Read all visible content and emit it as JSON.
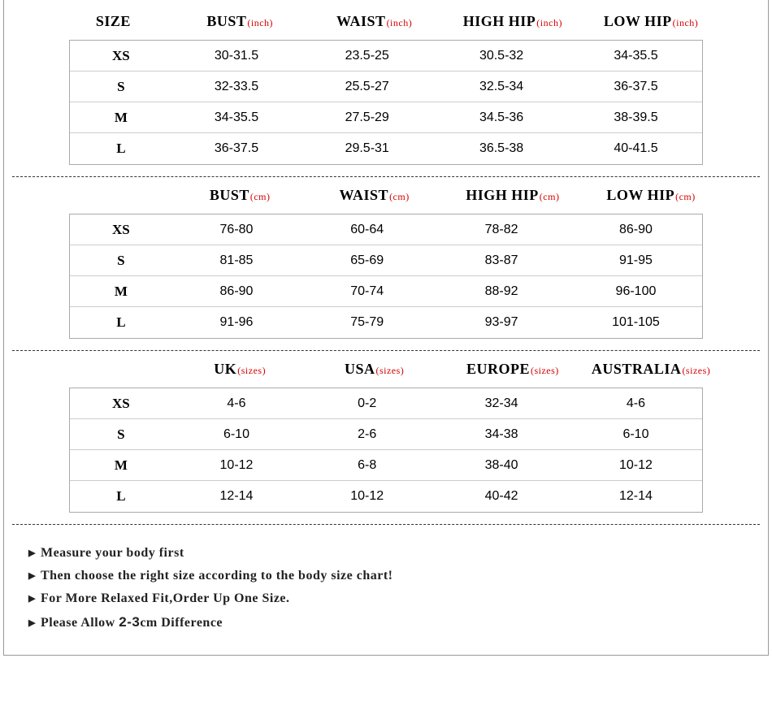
{
  "tables": [
    {
      "showSizeHeader": true,
      "sizeHeader": "SIZE",
      "headers": [
        {
          "label": "BUST",
          "unit": "(inch)"
        },
        {
          "label": "WAIST",
          "unit": "(inch)"
        },
        {
          "label": "HIGH HIP",
          "unit": "(inch)"
        },
        {
          "label": "LOW HIP",
          "unit": "(inch)"
        }
      ],
      "rows": [
        {
          "size": "XS",
          "v": [
            "30-31.5",
            "23.5-25",
            "30.5-32",
            "34-35.5"
          ]
        },
        {
          "size": "S",
          "v": [
            "32-33.5",
            "25.5-27",
            "32.5-34",
            "36-37.5"
          ]
        },
        {
          "size": "M",
          "v": [
            "34-35.5",
            "27.5-29",
            "34.5-36",
            "38-39.5"
          ]
        },
        {
          "size": "L",
          "v": [
            "36-37.5",
            "29.5-31",
            "36.5-38",
            "40-41.5"
          ]
        }
      ]
    },
    {
      "showSizeHeader": false,
      "sizeHeader": "",
      "headers": [
        {
          "label": "BUST",
          "unit": "(cm)"
        },
        {
          "label": "WAIST",
          "unit": "(cm)"
        },
        {
          "label": "HIGH HIP",
          "unit": "(cm)"
        },
        {
          "label": "LOW HIP",
          "unit": "(cm)"
        }
      ],
      "rows": [
        {
          "size": "XS",
          "v": [
            "76-80",
            "60-64",
            "78-82",
            "86-90"
          ]
        },
        {
          "size": "S",
          "v": [
            "81-85",
            "65-69",
            "83-87",
            "91-95"
          ]
        },
        {
          "size": "M",
          "v": [
            "86-90",
            "70-74",
            "88-92",
            "96-100"
          ]
        },
        {
          "size": "L",
          "v": [
            "91-96",
            "75-79",
            "93-97",
            "101-105"
          ]
        }
      ]
    },
    {
      "showSizeHeader": false,
      "sizeHeader": "",
      "headers": [
        {
          "label": "UK",
          "unit": " (sizes)"
        },
        {
          "label": "USA",
          "unit": "(sizes)"
        },
        {
          "label": "EUROPE",
          "unit": "(sizes)"
        },
        {
          "label": "AUSTRALIA",
          "unit": "(sizes)"
        }
      ],
      "rows": [
        {
          "size": "XS",
          "v": [
            "4-6",
            "0-2",
            "32-34",
            "4-6"
          ]
        },
        {
          "size": "S",
          "v": [
            "6-10",
            "2-6",
            "34-38",
            "6-10"
          ]
        },
        {
          "size": "M",
          "v": [
            "10-12",
            "6-8",
            "38-40",
            "10-12"
          ]
        },
        {
          "size": "L",
          "v": [
            "12-14",
            "10-12",
            "40-42",
            "12-14"
          ]
        }
      ]
    }
  ],
  "notes": [
    "Measure your body first",
    "Then choose the right size according to the body size chart!",
    "For More Relaxed Fit,Order Up One Size.",
    "Please Allow 2-3cm Difference"
  ]
}
